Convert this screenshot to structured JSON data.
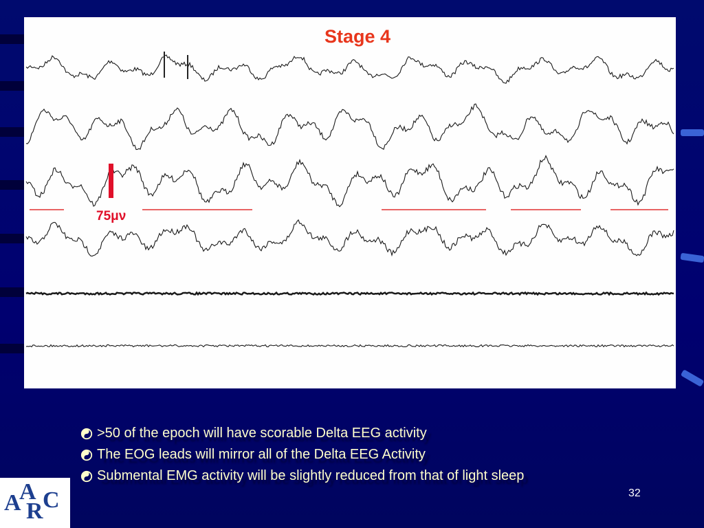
{
  "slide": {
    "figure": {
      "title": "Stage 4",
      "scale_label": "75μν"
    },
    "bullets": [
      ">50 of the epoch will have scorable Delta EEG activity",
      "The EOG leads will mirror all of the Delta EEG Activity",
      "Submental EMG activity will be slightly reduced from that of light sleep"
    ],
    "page_number": "32",
    "logo": [
      "A",
      "A",
      "R",
      "C"
    ]
  }
}
